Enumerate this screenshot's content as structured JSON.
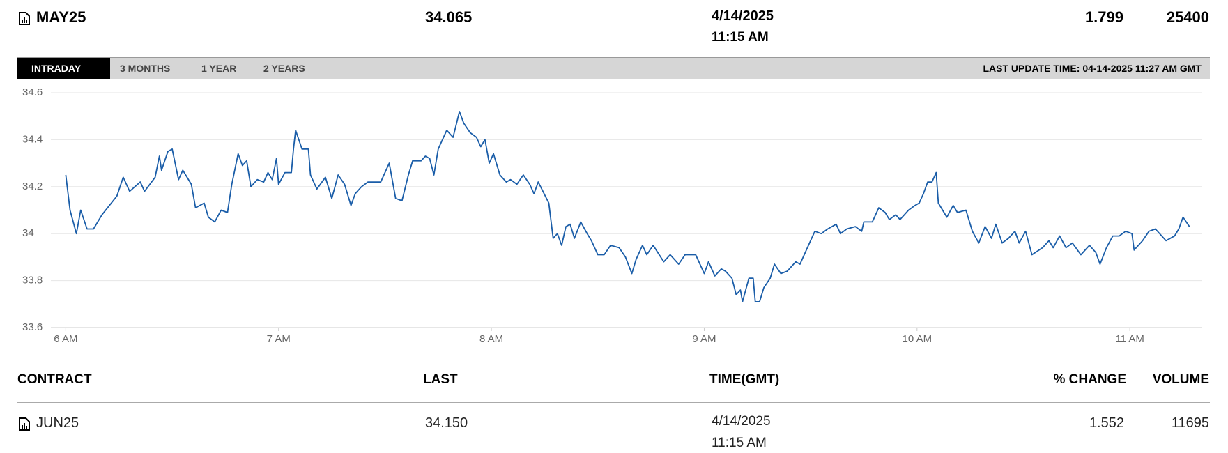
{
  "header": {
    "contract": "MAY25",
    "last": "34.065",
    "date": "4/14/2025",
    "time": "11:15 AM",
    "change": "1.799",
    "volume": "25400"
  },
  "tabs": [
    "INTRADAY",
    "3 MONTHS",
    "1 YEAR",
    "2 YEARS"
  ],
  "last_update": "LAST UPDATE TIME: 04-14-2025 11:27 AM GMT",
  "chart_data": {
    "type": "line",
    "x": [
      6.0,
      6.02,
      6.05,
      6.07,
      6.1,
      6.13,
      6.17,
      6.24,
      6.27,
      6.3,
      6.35,
      6.37,
      6.42,
      6.44,
      6.45,
      6.48,
      6.5,
      6.53,
      6.55,
      6.59,
      6.61,
      6.65,
      6.67,
      6.7,
      6.73,
      6.76,
      6.78,
      6.81,
      6.83,
      6.85,
      6.87,
      6.9,
      6.93,
      6.95,
      6.97,
      6.99,
      7.0,
      7.03,
      7.06,
      7.07,
      7.08,
      7.11,
      7.14,
      7.15,
      7.18,
      7.22,
      7.25,
      7.28,
      7.31,
      7.34,
      7.36,
      7.39,
      7.42,
      7.48,
      7.52,
      7.55,
      7.58,
      7.61,
      7.63,
      7.67,
      7.69,
      7.71,
      7.73,
      7.75,
      7.77,
      7.79,
      7.82,
      7.85,
      7.87,
      7.9,
      7.93,
      7.95,
      7.97,
      7.99,
      8.01,
      8.04,
      8.07,
      8.09,
      8.12,
      8.15,
      8.18,
      8.2,
      8.22,
      8.27,
      8.29,
      8.31,
      8.33,
      8.35,
      8.37,
      8.39,
      8.42,
      8.45,
      8.47,
      8.5,
      8.53,
      8.56,
      8.6,
      8.63,
      8.66,
      8.68,
      8.71,
      8.73,
      8.76,
      8.81,
      8.84,
      8.88,
      8.91,
      8.96,
      9.0,
      9.02,
      9.05,
      9.08,
      9.1,
      9.13,
      9.15,
      9.17,
      9.18,
      9.21,
      9.23,
      9.24,
      9.26,
      9.28,
      9.31,
      9.33,
      9.36,
      9.39,
      9.43,
      9.45,
      9.48,
      9.52,
      9.55,
      9.58,
      9.62,
      9.64,
      9.67,
      9.71,
      9.74,
      9.75,
      9.79,
      9.82,
      9.85,
      9.87,
      9.9,
      9.92,
      9.96,
      9.99,
      10.01,
      10.03,
      10.05,
      10.07,
      10.09,
      10.1,
      10.14,
      10.17,
      10.19,
      10.23,
      10.26,
      10.29,
      10.32,
      10.35,
      10.37,
      10.4,
      10.43,
      10.46,
      10.48,
      10.51,
      10.54,
      10.59,
      10.62,
      10.64,
      10.67,
      10.7,
      10.73,
      10.77,
      10.81,
      10.84,
      10.86,
      10.89,
      10.92,
      10.95,
      10.98,
      11.01,
      11.02,
      11.06,
      11.09,
      11.12,
      11.14,
      11.17,
      11.21,
      11.23,
      11.25,
      11.28
    ],
    "series": [
      {
        "color": "#1a5da8",
        "values": [
          34.25,
          34.1,
          34.0,
          34.1,
          34.02,
          34.02,
          34.08,
          34.16,
          34.24,
          34.18,
          34.22,
          34.18,
          34.24,
          34.33,
          34.27,
          34.35,
          34.36,
          34.23,
          34.27,
          34.21,
          34.11,
          34.13,
          34.07,
          34.05,
          34.1,
          34.09,
          34.21,
          34.34,
          34.29,
          34.31,
          34.2,
          34.23,
          34.22,
          34.26,
          34.23,
          34.32,
          34.21,
          34.26,
          34.26,
          34.36,
          34.44,
          34.36,
          34.36,
          34.25,
          34.19,
          34.24,
          34.15,
          34.25,
          34.21,
          34.12,
          34.17,
          34.2,
          34.22,
          34.22,
          34.3,
          34.15,
          34.14,
          34.25,
          34.31,
          34.31,
          34.33,
          34.32,
          34.25,
          34.36,
          34.4,
          34.44,
          34.41,
          34.52,
          34.47,
          34.43,
          34.41,
          34.37,
          34.4,
          34.3,
          34.34,
          34.25,
          34.22,
          34.23,
          34.21,
          34.25,
          34.21,
          34.17,
          34.22,
          34.13,
          33.98,
          34.0,
          33.95,
          34.03,
          34.04,
          33.98,
          34.05,
          34.0,
          33.97,
          33.91,
          33.91,
          33.95,
          33.94,
          33.9,
          33.83,
          33.89,
          33.95,
          33.91,
          33.95,
          33.88,
          33.91,
          33.87,
          33.91,
          33.91,
          33.83,
          33.88,
          33.82,
          33.85,
          33.84,
          33.81,
          33.74,
          33.76,
          33.71,
          33.81,
          33.81,
          33.71,
          33.71,
          33.77,
          33.81,
          33.87,
          33.83,
          33.84,
          33.88,
          33.87,
          33.93,
          34.01,
          34.0,
          34.02,
          34.04,
          34.0,
          34.02,
          34.03,
          34.01,
          34.05,
          34.05,
          34.11,
          34.09,
          34.06,
          34.08,
          34.06,
          34.1,
          34.12,
          34.13,
          34.17,
          34.22,
          34.22,
          34.26,
          34.13,
          34.07,
          34.12,
          34.09,
          34.1,
          34.01,
          33.96,
          34.03,
          33.98,
          34.04,
          33.96,
          33.98,
          34.01,
          33.96,
          34.01,
          33.91,
          33.94,
          33.97,
          33.94,
          33.99,
          33.94,
          33.96,
          33.91,
          33.95,
          33.92,
          33.87,
          33.94,
          33.99,
          33.99,
          34.01,
          34.0,
          33.93,
          33.97,
          34.01,
          34.02,
          34.0,
          33.97,
          33.99,
          34.02,
          34.07,
          34.03
        ]
      }
    ],
    "xlim": [
      5.93,
      11.34
    ],
    "xticks": [
      {
        "value": 6,
        "label": "6 AM"
      },
      {
        "value": 7,
        "label": "7 AM"
      },
      {
        "value": 8,
        "label": "8 AM"
      },
      {
        "value": 9,
        "label": "9 AM"
      },
      {
        "value": 10,
        "label": "10 AM"
      },
      {
        "value": 11,
        "label": "11 AM"
      }
    ],
    "ylim": [
      33.6,
      34.6
    ],
    "yticks": [
      33.6,
      33.8,
      34,
      34.2,
      34.4,
      34.6
    ],
    "grid": true
  },
  "table": {
    "columns": [
      "CONTRACT",
      "LAST",
      "TIME(GMT)",
      "% CHANGE",
      "VOLUME"
    ],
    "rows": [
      [
        "JUN25",
        "34.150",
        "4/14/2025",
        "11:15 AM",
        "1.552",
        "11695"
      ]
    ]
  }
}
